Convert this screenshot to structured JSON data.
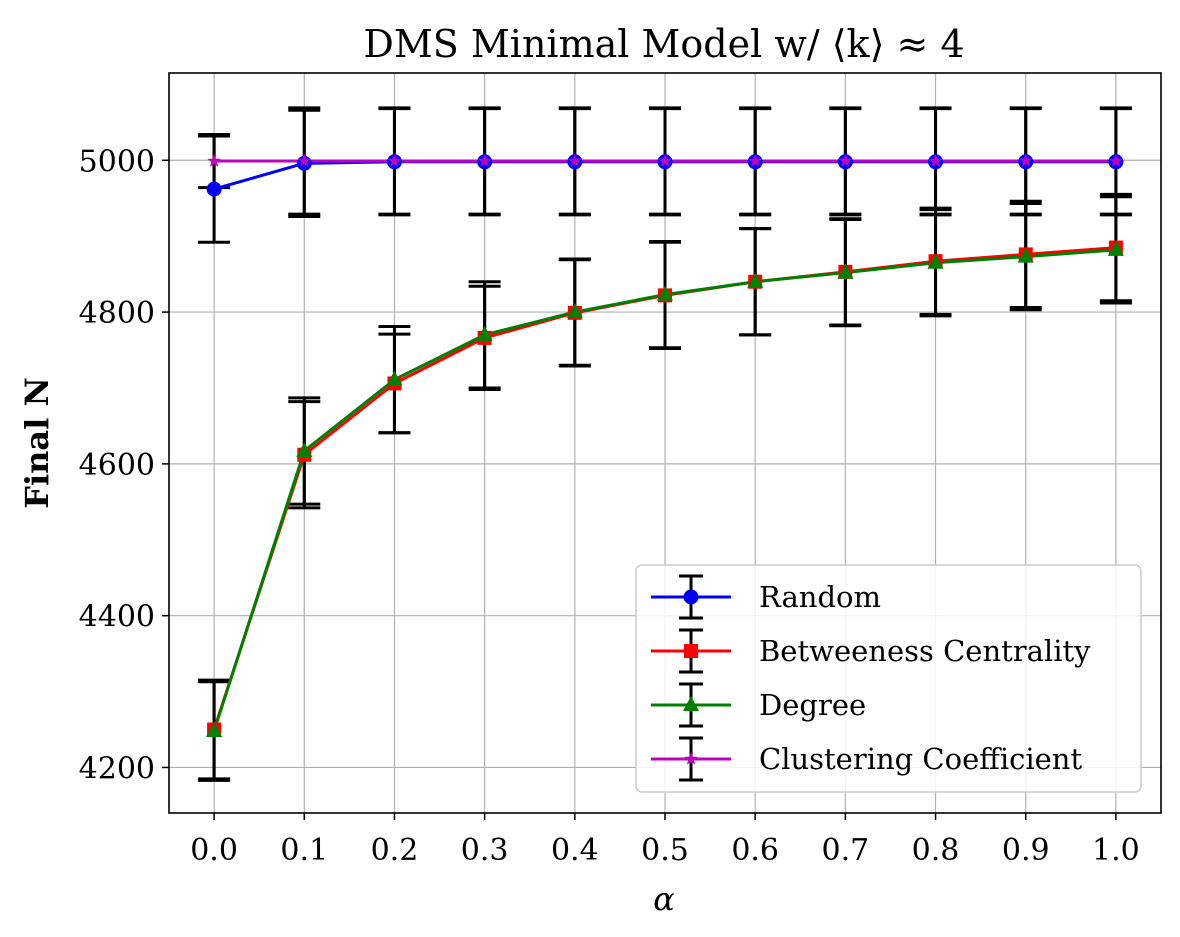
{
  "chart_data": {
    "type": "line",
    "title": "DMS Minimal Model w/ ⟨k⟩ ≈ 4",
    "xlabel": "α",
    "ylabel": "Final N",
    "x": [
      0.0,
      0.1,
      0.2,
      0.3,
      0.4,
      0.5,
      0.6,
      0.7,
      0.8,
      0.9,
      1.0
    ],
    "x_tick_labels": [
      "0.0",
      "0.1",
      "0.2",
      "0.3",
      "0.4",
      "0.5",
      "0.6",
      "0.7",
      "0.8",
      "0.9",
      "1.0"
    ],
    "y_ticks": [
      4200,
      4400,
      4600,
      4800,
      5000
    ],
    "y_tick_labels": [
      "4200",
      "4400",
      "4600",
      "4800",
      "5000"
    ],
    "xlim": [
      -0.05,
      1.05
    ],
    "ylim": [
      4140,
      5115
    ],
    "grid": true,
    "legend_position": "lower-right",
    "series": [
      {
        "name": "Random",
        "color": "#0000ff",
        "marker": "circle",
        "values": [
          4962,
          4996,
          4998,
          4998,
          4998,
          4998,
          4998,
          4998,
          4998,
          4998,
          4998
        ],
        "errors": [
          70,
          70,
          70,
          70,
          70,
          70,
          70,
          70,
          70,
          70,
          70
        ]
      },
      {
        "name": "Betweeness Centrality",
        "color": "#ff0000",
        "marker": "square",
        "values": [
          4250,
          4612,
          4706,
          4766,
          4799,
          4822,
          4840,
          4853,
          4867,
          4876,
          4885
        ],
        "errors": [
          65,
          70,
          65,
          68,
          70,
          70,
          70,
          70,
          70,
          70,
          70
        ]
      },
      {
        "name": "Degree",
        "color": "#008000",
        "marker": "triangle",
        "values": [
          4248,
          4617,
          4711,
          4770,
          4800,
          4823,
          4840,
          4852,
          4865,
          4873,
          4882
        ],
        "errors": [
          65,
          70,
          70,
          70,
          70,
          70,
          70,
          70,
          70,
          70,
          70
        ]
      },
      {
        "name": "Clustering Coefficient",
        "color": "#bf00bf",
        "marker": "star",
        "values": [
          4999,
          4999,
          4999,
          4999,
          4999,
          4999,
          4999,
          4999,
          4999,
          4999,
          4999
        ],
        "errors": [
          35,
          70,
          70,
          70,
          70,
          70,
          70,
          70,
          70,
          70,
          70
        ]
      }
    ]
  }
}
